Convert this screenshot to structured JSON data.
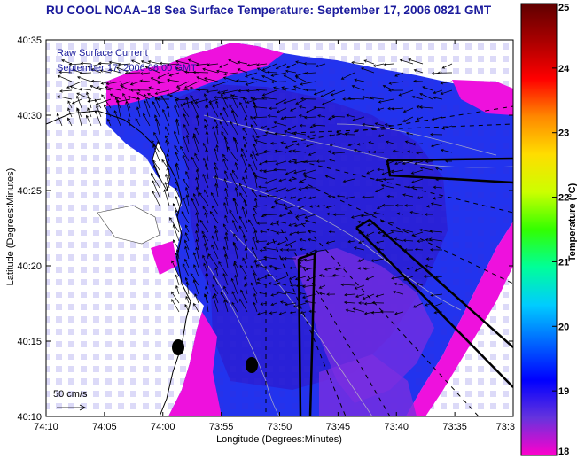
{
  "title": "RU COOL  NOAA–18  Sea Surface Temperature:  September 17, 2006 0821 GMT",
  "axes": {
    "xlabel": "Longitude (Degrees:Minutes)",
    "ylabel": "Latitude (Degrees:Minutes)",
    "x_ticks": [
      "74:10",
      "74:05",
      "74:00",
      "73:55",
      "73:50",
      "73:45",
      "73:40",
      "73:35",
      "73:3"
    ],
    "y_ticks": [
      "40:35",
      "40:30",
      "40:25",
      "40:20",
      "40:15",
      "40:10"
    ]
  },
  "legend": {
    "current_title": "Raw Surface Current",
    "current_time": "September 17, 2006 08:00 GMT",
    "scale_label": "50 cm/s"
  },
  "colorbar": {
    "label": "Temperature (°C)",
    "ticks": [
      "25",
      "24",
      "23",
      "22",
      "21",
      "20",
      "19",
      "18"
    ],
    "range": [
      18,
      25
    ],
    "colors": [
      "#ff00cc",
      "#6633dd",
      "#0000ff",
      "#0066ff",
      "#00ccff",
      "#00ff99",
      "#33ff00",
      "#ccff00",
      "#ffdd00",
      "#ff8800",
      "#ff0000",
      "#aa0000",
      "#600000"
    ]
  },
  "colors": {
    "land": "#ffffff",
    "ocean_cold": "#2233ee",
    "ocean_deep": "#2b1fd0",
    "warm_edge": "#8833dd",
    "hot_edge": "#ee11dd",
    "title": "#1a1a9c"
  }
}
